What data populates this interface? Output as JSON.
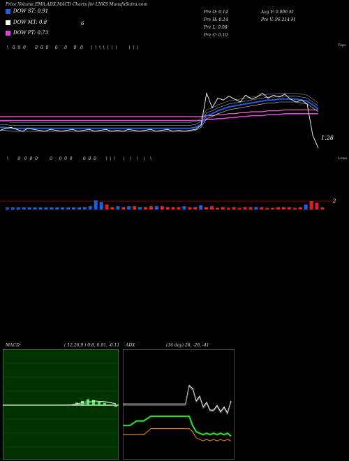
{
  "header": "Price,Volume,EMA,ADX,MACD Charts for LNKS MunafaSutra.com",
  "legend": [
    {
      "label": "DOW ST: 0.91",
      "color": "#1e5fe6"
    },
    {
      "label": "DOW MT: 0.8",
      "color": "#ffffff"
    },
    {
      "label": "DOW PT: 0.73",
      "color": "#e040e0"
    }
  ],
  "legend_extra": "6",
  "ohlc": {
    "open": "Pre  O: 0.14",
    "high": "Pre  H: 0.14",
    "low": "Pre  L: 0.08",
    "close": "Pre  C: 0.10",
    "avg_vol": "Avg V: 0.006  M",
    "vol": "Pre  V: 96.214  M"
  },
  "top_label": "Tops",
  "low_label": "Lows",
  "price_label": "1.28",
  "volume_label": "2",
  "macd": {
    "title": "MACD:",
    "params": "( 12,26,9 ) 0.8, 0.91, -0.11"
  },
  "adx": {
    "title": "ADX",
    "params": "(14  day) 28, -26, -41"
  },
  "top_signals": "\\   0  0  0       0  0  0     0     0     0   0      \\  \\  \\  \\  \\  \\  \\         \\  \\  \\",
  "low_signals": "\\       0   0  0  0         0     0  0  0        0  0  0       \\  \\  \\      \\    \\    \\    \\    \\",
  "chart_data": [
    {
      "type": "line",
      "name": "price-ema",
      "price_marker": 1.28,
      "colors": {
        "price": "#ffffff",
        "ema_short": "#1e5fe6",
        "ema_long": "#e040e0"
      },
      "x": [
        0,
        8,
        16,
        24,
        32,
        40,
        48,
        56,
        64,
        72,
        80,
        88,
        96,
        104,
        112,
        120,
        128,
        136,
        144,
        152,
        160,
        168,
        176,
        184,
        192,
        200,
        208,
        216,
        224,
        232,
        240,
        248,
        256,
        264,
        272,
        280,
        288,
        296,
        304,
        312,
        320,
        328,
        336,
        344,
        352,
        360,
        368,
        376,
        384,
        392,
        400,
        408,
        416,
        424,
        432,
        440,
        448,
        456
      ],
      "price": [
        3.1,
        3.3,
        3.4,
        3.2,
        3.0,
        3.3,
        3.2,
        3.1,
        3.0,
        3.2,
        3.1,
        3.0,
        3.1,
        3.2,
        3.0,
        3.1,
        3.2,
        3.0,
        3.1,
        3.2,
        3.0,
        3.1,
        3.0,
        3.2,
        3.1,
        3.0,
        3.1,
        3.2,
        3.0,
        3.1,
        3.2,
        3.0,
        3.1,
        3.0,
        3.1,
        3.2,
        3.6,
        6.9,
        5.4,
        6.4,
        6.2,
        6.6,
        6.3,
        6.0,
        6.7,
        6.3,
        6.5,
        6.9,
        6.4,
        6.7,
        6.5,
        6.8,
        6.3,
        6.0,
        6.2,
        5.8,
        2.6,
        1.28
      ],
      "ema_short": [
        3.4,
        3.4,
        3.3,
        3.3,
        3.3,
        3.3,
        3.3,
        3.3,
        3.3,
        3.3,
        3.3,
        3.3,
        3.3,
        3.3,
        3.3,
        3.3,
        3.3,
        3.3,
        3.3,
        3.3,
        3.3,
        3.3,
        3.3,
        3.3,
        3.3,
        3.3,
        3.3,
        3.3,
        3.3,
        3.3,
        3.3,
        3.3,
        3.3,
        3.3,
        3.3,
        3.4,
        3.7,
        4.6,
        4.8,
        5.1,
        5.3,
        5.5,
        5.6,
        5.7,
        5.8,
        5.9,
        6.0,
        6.1,
        6.2,
        6.2,
        6.3,
        6.3,
        6.3,
        6.3,
        6.2,
        6.1,
        5.7,
        5.3
      ],
      "ema_long": [
        4.5,
        4.5,
        4.5,
        4.5,
        4.5,
        4.5,
        4.5,
        4.5,
        4.5,
        4.5,
        4.5,
        4.5,
        4.5,
        4.5,
        4.5,
        4.5,
        4.5,
        4.5,
        4.5,
        4.5,
        4.5,
        4.5,
        4.5,
        4.5,
        4.5,
        4.5,
        4.5,
        4.5,
        4.5,
        4.5,
        4.5,
        4.5,
        4.5,
        4.5,
        4.5,
        4.5,
        4.5,
        4.6,
        4.6,
        4.7,
        4.7,
        4.8,
        4.8,
        4.9,
        4.9,
        5.0,
        5.0,
        5.0,
        5.1,
        5.1,
        5.1,
        5.2,
        5.2,
        5.2,
        5.2,
        5.2,
        5.2,
        5.2
      ]
    },
    {
      "type": "bar",
      "name": "volume",
      "categories": [
        0,
        8,
        16,
        24,
        32,
        40,
        48,
        56,
        64,
        72,
        80,
        88,
        96,
        104,
        112,
        120,
        128,
        136,
        144,
        152,
        160,
        168,
        176,
        184,
        192,
        200,
        208,
        216,
        224,
        232,
        240,
        248,
        256,
        264,
        272,
        280,
        288,
        296,
        304,
        312,
        320,
        328,
        336,
        344,
        352,
        360,
        368,
        376,
        384,
        392,
        400,
        408,
        416,
        424,
        432,
        440,
        448,
        456
      ],
      "values": [
        0.5,
        0.5,
        0.5,
        0.5,
        0.5,
        0.5,
        0.5,
        0.5,
        0.5,
        0.5,
        0.5,
        0.5,
        0.5,
        0.5,
        0.6,
        0.8,
        2.2,
        1.8,
        1.2,
        0.6,
        0.8,
        0.6,
        0.8,
        0.8,
        0.6,
        0.6,
        0.8,
        0.8,
        0.8,
        0.6,
        0.6,
        0.6,
        0.8,
        0.6,
        0.6,
        1.0,
        0.6,
        0.8,
        0.4,
        0.6,
        0.4,
        0.6,
        0.4,
        0.6,
        0.6,
        0.6,
        0.6,
        0.4,
        0.4,
        0.6,
        0.6,
        0.6,
        0.4,
        0.6,
        1.2,
        2.0,
        1.6,
        0.5
      ],
      "colors": [
        "blue",
        "blue",
        "blue",
        "blue",
        "blue",
        "blue",
        "blue",
        "blue",
        "blue",
        "blue",
        "blue",
        "blue",
        "blue",
        "blue",
        "blue",
        "blue",
        "blue",
        "blue",
        "red",
        "red",
        "blue",
        "red",
        "blue",
        "red",
        "blue",
        "red",
        "red",
        "blue",
        "red",
        "red",
        "red",
        "red",
        "blue",
        "red",
        "red",
        "blue",
        "red",
        "red",
        "red",
        "red",
        "red",
        "red",
        "red",
        "red",
        "red",
        "blue",
        "red",
        "red",
        "red",
        "red",
        "red",
        "red",
        "red",
        "red",
        "blue",
        "red",
        "red",
        "red"
      ]
    },
    {
      "type": "area",
      "name": "macd",
      "x": [
        0,
        8,
        16,
        24,
        32,
        40,
        48,
        56,
        64,
        72,
        80,
        88,
        96,
        104,
        112,
        120,
        128,
        136,
        144,
        152,
        160
      ],
      "macd": [
        0,
        0,
        0,
        0,
        0,
        0,
        0,
        0,
        0,
        0,
        0,
        0.02,
        0.05,
        0.3,
        0.6,
        0.9,
        1.0,
        0.95,
        0.85,
        0.6,
        0.3
      ],
      "signal": [
        0,
        0,
        0,
        0,
        0,
        0,
        0,
        0,
        0,
        0,
        0,
        0.01,
        0.03,
        0.15,
        0.35,
        0.55,
        0.7,
        0.75,
        0.72,
        0.6,
        0.4
      ]
    },
    {
      "type": "line",
      "name": "adx",
      "x": [
        0,
        10,
        20,
        30,
        40,
        50,
        60,
        70,
        80,
        90,
        95,
        100,
        105,
        110,
        115,
        120,
        125,
        130,
        135,
        140,
        145,
        150,
        155
      ],
      "adx": [
        28,
        28,
        28,
        28,
        28,
        28,
        28,
        28,
        28,
        28,
        40,
        38,
        30,
        33,
        26,
        29,
        24,
        24,
        27,
        23,
        26,
        22,
        30
      ],
      "plus_di": [
        14,
        14,
        17,
        17,
        20,
        20,
        20,
        20,
        20,
        20,
        20,
        14,
        10,
        9,
        8,
        9,
        8,
        9,
        8,
        9,
        8,
        9,
        7
      ],
      "minus_di": [
        8,
        8,
        8,
        8,
        12,
        12,
        12,
        12,
        12,
        12,
        12,
        10,
        6,
        5,
        4,
        5,
        4,
        5,
        4,
        5,
        4,
        5,
        4
      ]
    }
  ]
}
